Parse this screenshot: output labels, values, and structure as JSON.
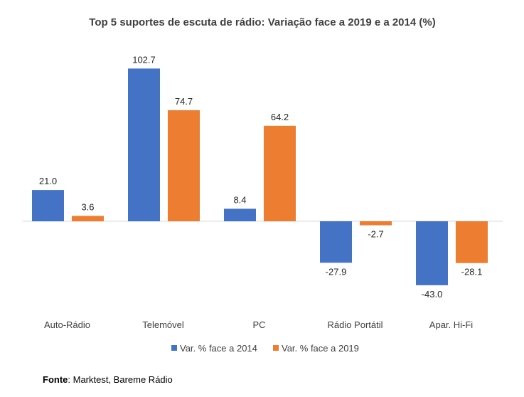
{
  "chart_data": {
    "type": "bar",
    "title": "Top 5 suportes de escuta de rádio: Variação face a 2019 e a 2014 (%)",
    "categories": [
      "Auto-Rádio",
      "Telemóvel",
      "PC",
      "Rádio Portátil",
      "Apar. Hi-Fi"
    ],
    "series": [
      {
        "name": "Var. % face a 2014",
        "color": "#4472C4",
        "values": [
          21.0,
          102.7,
          8.4,
          -27.9,
          -43.0
        ]
      },
      {
        "name": "Var. % face a 2019",
        "color": "#ED7D31",
        "values": [
          3.6,
          74.7,
          64.2,
          -2.7,
          -28.1
        ]
      }
    ],
    "ylim": [
      -48,
      110
    ],
    "grid": false,
    "legend": "bottom",
    "xlabel": "",
    "ylabel": ""
  },
  "source": {
    "label": "Fonte",
    "text": ": Marktest, Bareme Rádio"
  }
}
